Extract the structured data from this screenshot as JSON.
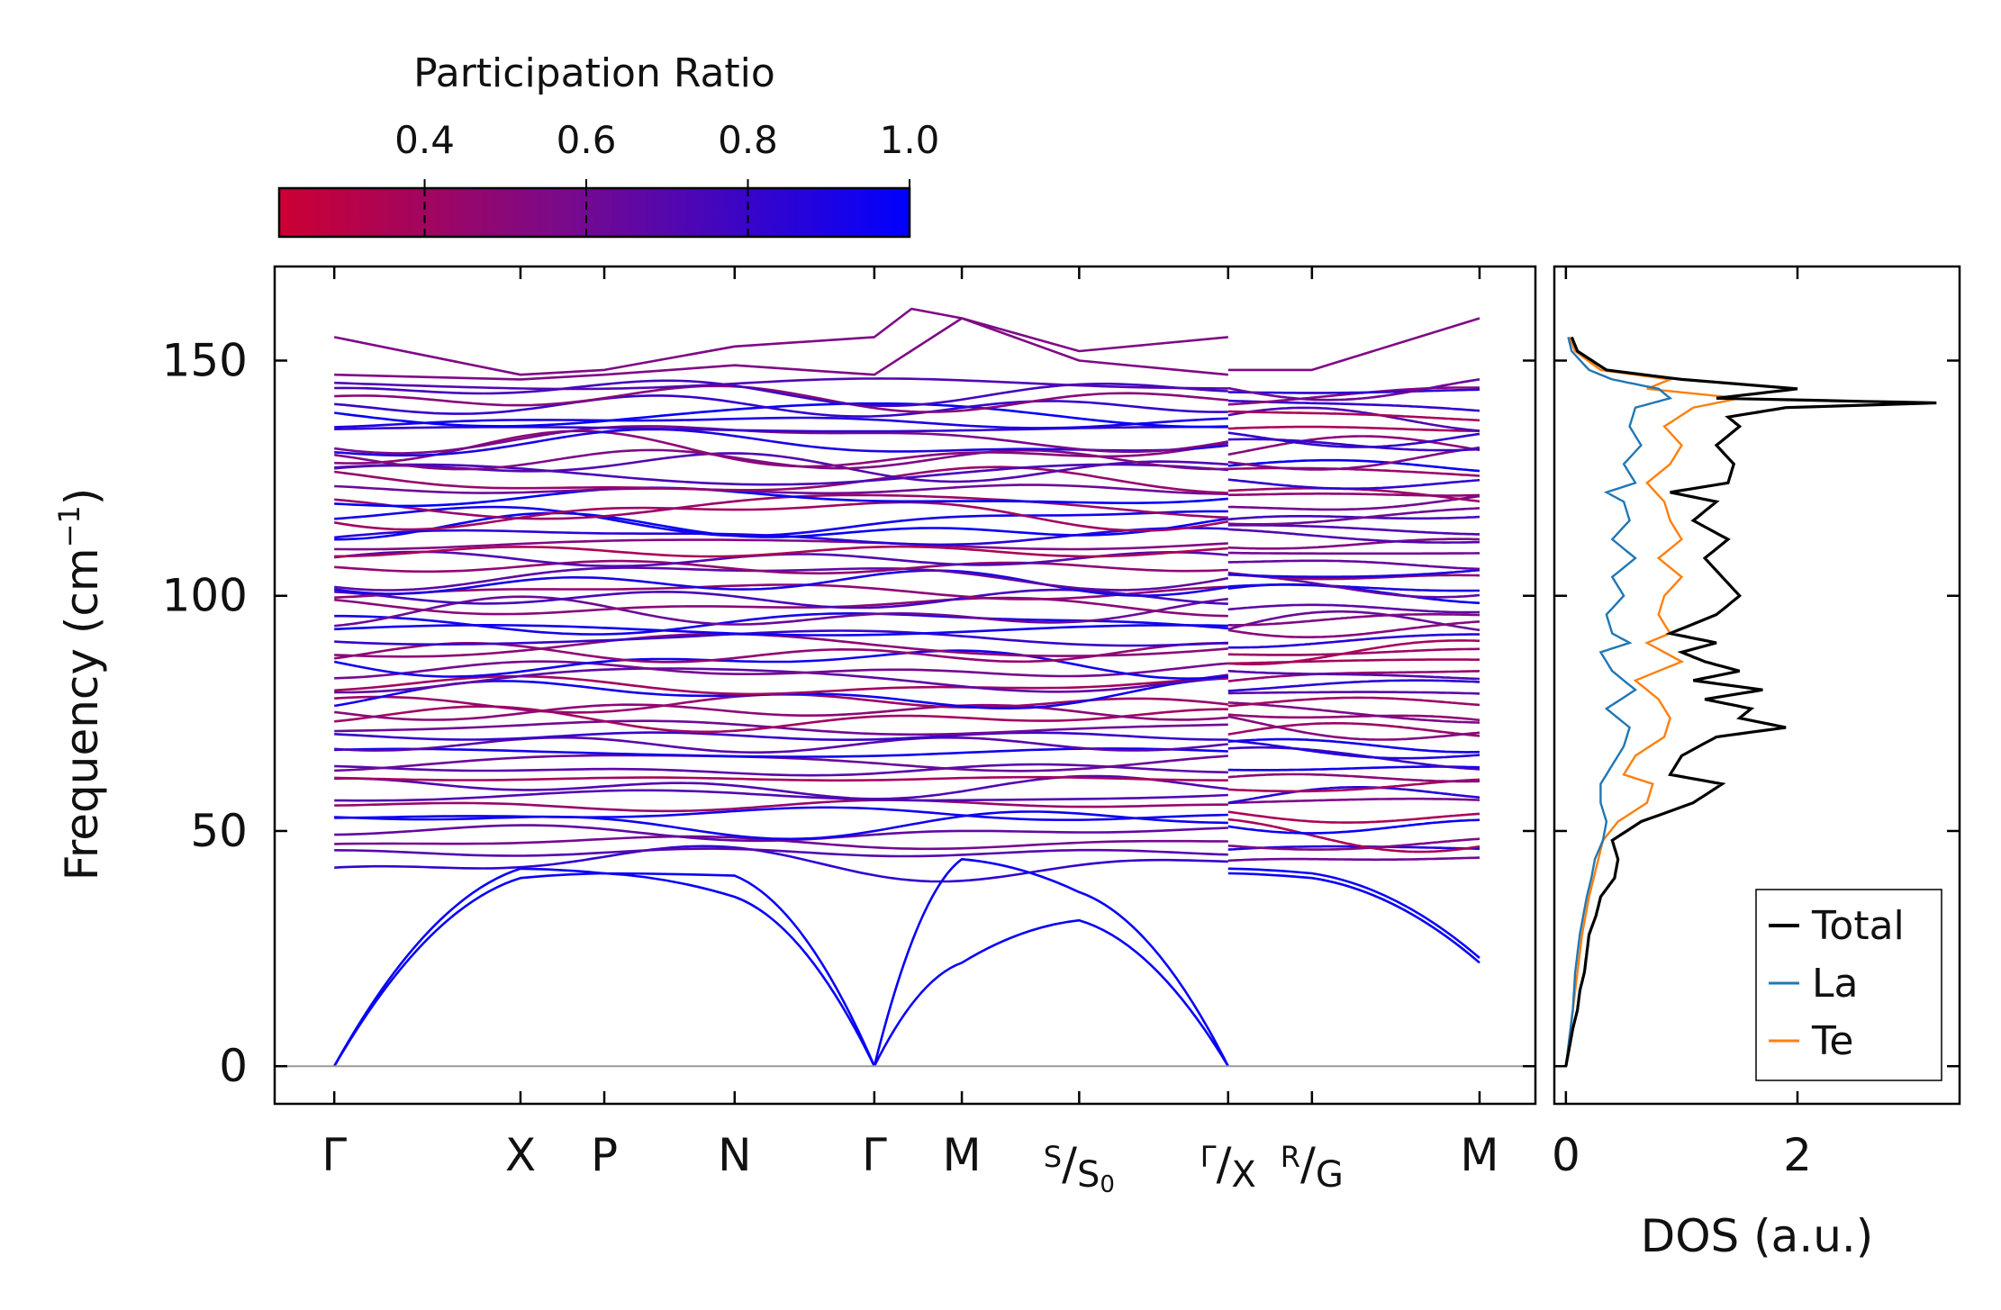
{
  "chart_data": [
    {
      "type": "line",
      "subtype": "phonon-band-structure",
      "ylabel_main": "Frequency (cm",
      "ylabel_sup": "−1",
      "ylabel_close": ")",
      "ylim": [
        -8,
        170
      ],
      "yticks": [
        0,
        50,
        100,
        150
      ],
      "ytick_labels": [
        "0",
        "50",
        "100",
        "150"
      ],
      "baseline": 0,
      "kpoints": [
        {
          "pos": 0.0,
          "label": "Γ"
        },
        {
          "pos": 1.0,
          "label": "X"
        },
        {
          "pos": 1.45,
          "label": "P"
        },
        {
          "pos": 2.15,
          "label": "N"
        },
        {
          "pos": 2.9,
          "label": "Γ"
        },
        {
          "pos": 3.37,
          "label": "M"
        },
        {
          "pos": 4.0,
          "label": "S",
          "sub": "S",
          "sub_index": "0"
        },
        {
          "pos": 4.8,
          "label": "Γ",
          "sub": "X"
        },
        {
          "pos": 5.25,
          "label": "R",
          "sub": "G"
        },
        {
          "pos": 6.15,
          "label": "M"
        }
      ],
      "k_range": [
        -0.32,
        6.45
      ],
      "segment_break": 4.8,
      "colorbar": {
        "title": "Participation Ratio",
        "vmin": 0.22,
        "vmax": 1.0,
        "ticks": [
          0.4,
          0.6,
          0.8,
          1.0
        ],
        "tick_labels": [
          "0.4",
          "0.6",
          "0.8",
          "1.0"
        ],
        "color_low": "#cc0033",
        "color_mid": "#7a0a8a",
        "color_high": "#0000ff"
      },
      "acoustic_branches": [
        {
          "k": [
            0,
            1,
            1.45,
            2.15,
            2.9
          ],
          "freq": [
            0,
            42,
            41,
            40.5,
            0
          ]
        },
        {
          "k": [
            0,
            1,
            1.45,
            2.15,
            2.9
          ],
          "freq": [
            0,
            40,
            41,
            36,
            0
          ]
        },
        {
          "k": [
            2.9,
            3.37,
            4.0,
            4.8
          ],
          "freq": [
            0,
            44,
            37,
            0
          ]
        },
        {
          "k": [
            2.9,
            3.37,
            4.0,
            4.8
          ],
          "freq": [
            0,
            22,
            31,
            0
          ]
        },
        {
          "k": [
            4.8,
            5.25,
            6.15
          ],
          "freq": [
            41,
            40,
            22
          ]
        },
        {
          "k": [
            4.8,
            5.25,
            6.15
          ],
          "freq": [
            42,
            41,
            23
          ]
        }
      ],
      "top_branches": [
        {
          "k": [
            0,
            1,
            1.45,
            2.15,
            2.9,
            3.1,
            3.37,
            4.0,
            4.8
          ],
          "freq": [
            155,
            147,
            148,
            153,
            155,
            161,
            159,
            152,
            155
          ]
        },
        {
          "k": [
            0,
            1,
            1.45,
            2.15,
            2.9,
            3.37,
            4.0,
            4.8
          ],
          "freq": [
            147,
            146,
            147,
            149,
            147,
            159,
            150,
            147
          ]
        },
        {
          "k": [
            4.8,
            5.25,
            6.15
          ],
          "freq": [
            148,
            148,
            159
          ]
        }
      ],
      "optical_band_count": 60,
      "optical_band_range": [
        40,
        146
      ]
    },
    {
      "type": "line",
      "subtype": "density-of-states",
      "xlabel": "DOS (a.u.)",
      "xlim": [
        -0.1,
        3.4
      ],
      "xticks": [
        0,
        2
      ],
      "xtick_labels": [
        "0",
        "2"
      ],
      "ylim": [
        -8,
        170
      ],
      "legend_position": "bottom-right",
      "series": [
        {
          "name": "Total",
          "color": "#000000",
          "freq": [
            0,
            4,
            8,
            12,
            16,
            20,
            24,
            28,
            32,
            36,
            40,
            44,
            48,
            52,
            56,
            60,
            62,
            66,
            70,
            72,
            74,
            76,
            78,
            80,
            82,
            84,
            86,
            88,
            90,
            92,
            96,
            100,
            104,
            108,
            112,
            116,
            120,
            122,
            124,
            128,
            132,
            136,
            138,
            140,
            141,
            142,
            144,
            146,
            148,
            152,
            155
          ],
          "dos": [
            0,
            0.03,
            0.06,
            0.1,
            0.12,
            0.16,
            0.18,
            0.2,
            0.26,
            0.3,
            0.42,
            0.45,
            0.4,
            0.65,
            1.1,
            1.35,
            0.9,
            1.0,
            1.3,
            1.9,
            1.5,
            1.6,
            1.2,
            1.7,
            1.1,
            1.5,
            1.2,
            1.0,
            1.3,
            0.9,
            1.3,
            1.5,
            1.35,
            1.2,
            1.4,
            1.1,
            1.3,
            0.9,
            1.4,
            1.45,
            1.3,
            1.5,
            1.4,
            1.9,
            3.2,
            1.3,
            2.0,
            1.0,
            0.35,
            0.1,
            0.05
          ]
        },
        {
          "name": "La",
          "color": "#1f77b4",
          "freq": [
            0,
            4,
            8,
            12,
            16,
            20,
            24,
            28,
            32,
            36,
            40,
            44,
            48,
            52,
            56,
            60,
            64,
            68,
            72,
            76,
            80,
            84,
            88,
            90,
            92,
            96,
            100,
            104,
            108,
            112,
            116,
            120,
            122,
            124,
            128,
            132,
            136,
            140,
            142,
            144,
            146,
            148,
            152,
            155
          ],
          "dos": [
            0,
            0.02,
            0.04,
            0.06,
            0.07,
            0.08,
            0.1,
            0.12,
            0.15,
            0.18,
            0.22,
            0.25,
            0.32,
            0.35,
            0.3,
            0.3,
            0.4,
            0.5,
            0.55,
            0.35,
            0.6,
            0.4,
            0.3,
            0.55,
            0.4,
            0.35,
            0.5,
            0.4,
            0.6,
            0.4,
            0.55,
            0.5,
            0.35,
            0.6,
            0.5,
            0.65,
            0.55,
            0.6,
            0.9,
            0.8,
            0.4,
            0.2,
            0.05,
            0.02
          ]
        },
        {
          "name": "Te",
          "color": "#ff7f0e",
          "freq": [
            0,
            4,
            8,
            12,
            16,
            20,
            24,
            28,
            32,
            36,
            40,
            44,
            48,
            52,
            56,
            60,
            62,
            66,
            70,
            74,
            78,
            82,
            86,
            90,
            92,
            96,
            100,
            104,
            108,
            112,
            116,
            120,
            124,
            128,
            132,
            136,
            140,
            142,
            144,
            146,
            148,
            152,
            155
          ],
          "dos": [
            0,
            0.02,
            0.04,
            0.06,
            0.08,
            0.1,
            0.12,
            0.14,
            0.17,
            0.2,
            0.24,
            0.28,
            0.32,
            0.45,
            0.7,
            0.75,
            0.5,
            0.6,
            0.85,
            0.9,
            0.8,
            0.6,
            1.0,
            0.7,
            0.9,
            0.8,
            0.85,
            1.0,
            0.8,
            1.0,
            0.9,
            0.85,
            0.7,
            0.9,
            1.0,
            0.85,
            1.1,
            1.5,
            0.7,
            0.9,
            0.3,
            0.08,
            0.03
          ]
        }
      ]
    }
  ]
}
